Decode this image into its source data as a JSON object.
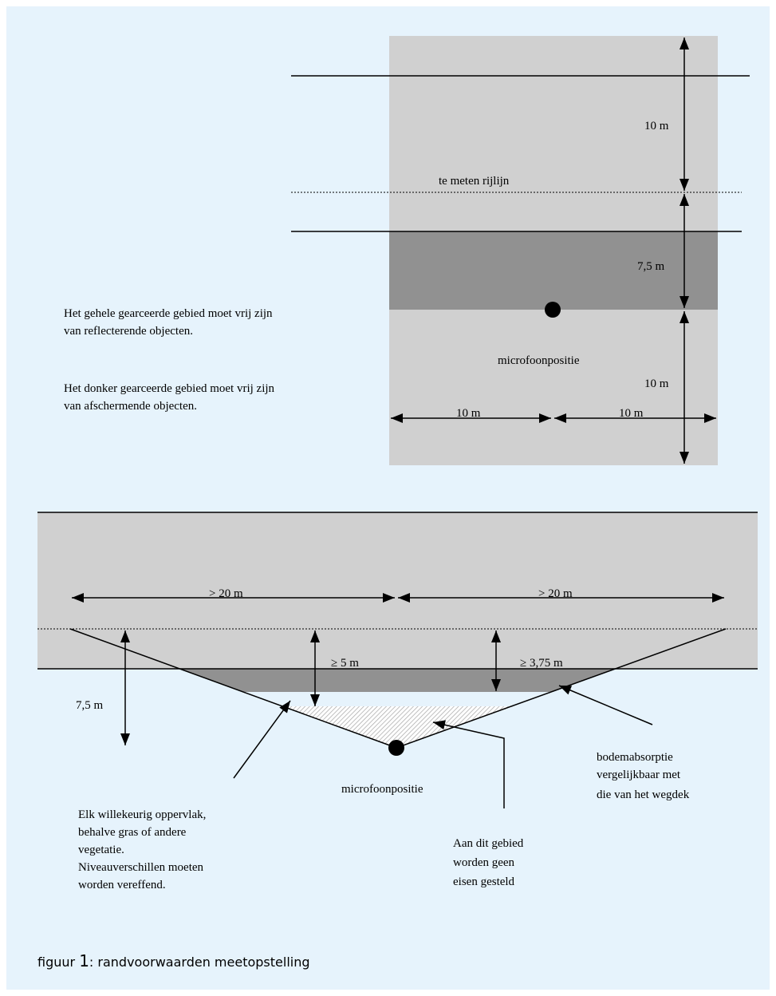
{
  "top_diagram": {
    "distance_top": "10 m",
    "line_label": "te meten rijlijn",
    "distance_middle": "7,5 m",
    "distance_bottom": "10 m",
    "width_left": "10 m",
    "width_right": "10 m",
    "microphone_label": "microfoonpositie",
    "note_1": [
      "Het gehele gearceerde gebied moet vrij zijn",
      "van reflecterende objecten."
    ],
    "note_2": [
      "Het donker gearceerde gebied moet vrij zijn",
      "van afschermende objecten."
    ]
  },
  "bottom_diagram": {
    "width_left": "> 20 m",
    "width_right": "> 20 m",
    "depth_left": "7,5 m",
    "depth_center": "≥ 5 m",
    "depth_right": "≥ 3,75 m",
    "microphone_label": "microfoonpositie",
    "note_surface": [
      "Elk willekeurig oppervlak,",
      "behalve gras of andere",
      "vegetatie.",
      "Niveauverschillen moeten",
      "worden vereffend."
    ],
    "note_area": [
      "Aan dit gebied",
      "worden geen",
      "eisen gesteld"
    ],
    "note_absorption": [
      "bodemabsorptie",
      "vergelijkbaar met",
      "die van het wegdek"
    ]
  },
  "caption": {
    "prefix": "figuur ",
    "number": "1",
    "text": ": randvoorwaarden meetopstelling"
  }
}
